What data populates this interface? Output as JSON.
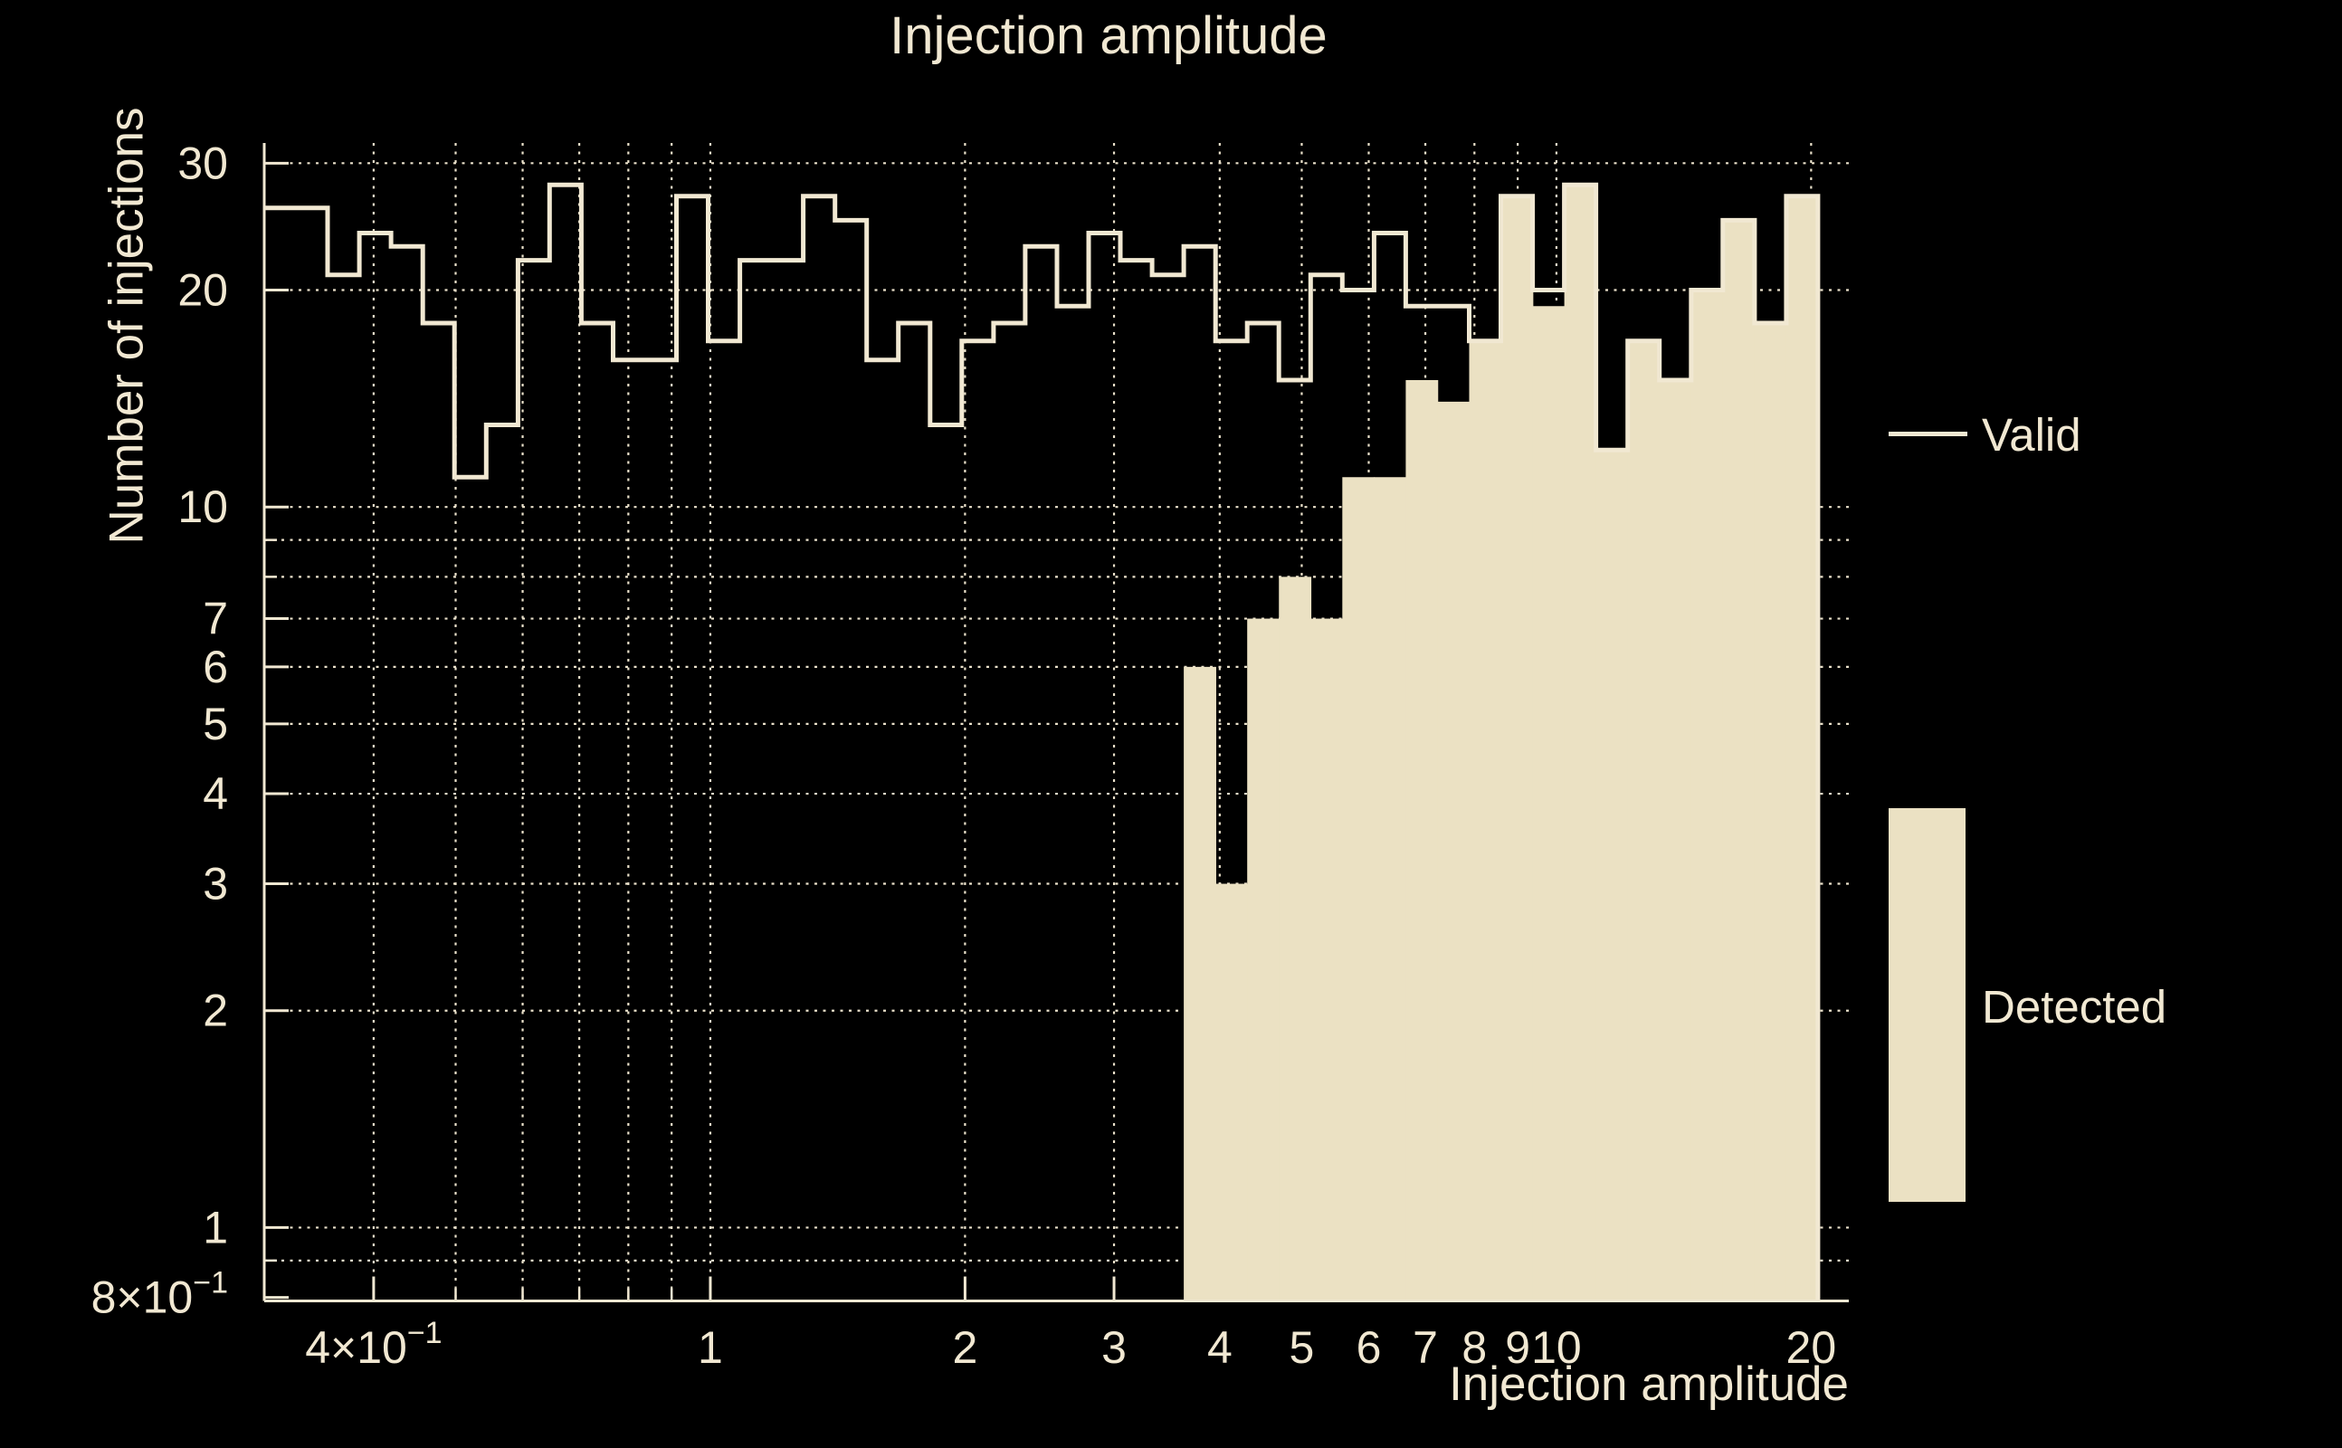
{
  "title": "Injection amplitude",
  "legend": {
    "valid_label": "Valid",
    "detected_label": "Detected"
  },
  "colors": {
    "background": "#000000",
    "text": "#f1e8d2",
    "valid_line": "#f1e8d2",
    "detected_fill": "#ebe1c3",
    "grid": "#e9e0ca",
    "spine": "#f1e8d2"
  },
  "chart_data": {
    "type": "step-histogram",
    "title": "Injection amplitude",
    "xlabel": "Injection amplitude",
    "ylabel": "Number of injections",
    "xscale": "log",
    "yscale": "log",
    "xlim": [
      0.297,
      22.16
    ],
    "ylim": [
      0.791,
      32.0
    ],
    "grid": true,
    "grid_style": "dotted",
    "legend_position": "right",
    "bin_edges": [
      0.2969,
      0.3237,
      0.3529,
      0.3847,
      0.4194,
      0.4572,
      0.4984,
      0.5434,
      0.5924,
      0.6457,
      0.7039,
      0.7674,
      0.8366,
      0.912,
      0.994,
      1.0836,
      1.1813,
      1.2877,
      1.4038,
      1.5303,
      1.6682,
      1.8186,
      1.9825,
      2.1612,
      2.356,
      2.5683,
      2.7998,
      3.0521,
      3.3272,
      3.6271,
      3.954,
      4.3104,
      4.6989,
      5.1224,
      5.5841,
      6.0874,
      6.6361,
      7.2342,
      7.8863,
      8.5971,
      9.372,
      10.2166,
      11.1374,
      12.1413,
      13.2356,
      14.4285,
      15.7289,
      17.1466,
      18.692,
      20.3766
    ],
    "series": [
      {
        "name": "Valid",
        "style": "step-line",
        "values": [
          26,
          26,
          21,
          24,
          23,
          18,
          11,
          13,
          22,
          28,
          18,
          16,
          16,
          27,
          17,
          22,
          22,
          27,
          25,
          16,
          18,
          13,
          17,
          18,
          23,
          19,
          24,
          22,
          21,
          23,
          17,
          18,
          15,
          21,
          20,
          24,
          19,
          19,
          17,
          27,
          20,
          28,
          12,
          17,
          15,
          20,
          25,
          18,
          27
        ]
      },
      {
        "name": "Detected",
        "style": "filled-bar",
        "values": [
          0,
          0,
          0,
          0,
          0,
          0,
          0,
          0,
          0,
          0,
          0,
          0,
          0,
          0,
          0,
          0,
          0,
          0,
          0,
          0,
          0,
          0,
          0,
          0,
          0,
          0,
          0,
          0,
          0,
          6,
          3,
          7,
          8,
          7,
          11,
          11,
          15,
          14,
          17,
          27,
          19,
          28,
          12,
          17,
          15,
          20,
          25,
          18,
          27
        ]
      }
    ],
    "x_major_ticks": [
      {
        "v": 0.4,
        "t": "4×10",
        "sup": "−1"
      },
      {
        "v": 1,
        "t": "1"
      },
      {
        "v": 2,
        "t": "2"
      },
      {
        "v": 3,
        "t": "3"
      },
      {
        "v": 4,
        "t": "4"
      },
      {
        "v": 5,
        "t": "5"
      },
      {
        "v": 6,
        "t": "6"
      },
      {
        "v": 7,
        "t": "7"
      },
      {
        "v": 8,
        "t": "8"
      },
      {
        "v": 9,
        "t": "9"
      },
      {
        "v": 10,
        "t": "10"
      },
      {
        "v": 20,
        "t": "20"
      }
    ],
    "x_minor_ticks": [
      0.5,
      0.6,
      0.7,
      0.8,
      0.9
    ],
    "y_major_ticks": [
      {
        "v": 0.8,
        "t": "8×10",
        "sup": "−1"
      },
      {
        "v": 1,
        "t": "1"
      },
      {
        "v": 2,
        "t": "2"
      },
      {
        "v": 3,
        "t": "3"
      },
      {
        "v": 4,
        "t": "4"
      },
      {
        "v": 5,
        "t": "5"
      },
      {
        "v": 6,
        "t": "6"
      },
      {
        "v": 7,
        "t": "7"
      },
      {
        "v": 10,
        "t": "10"
      },
      {
        "v": 20,
        "t": "20"
      },
      {
        "v": 30,
        "t": "30"
      }
    ],
    "y_minor_ticks": [
      0.9,
      8,
      9
    ],
    "x_gridlines": [
      0.4,
      0.5,
      0.6,
      0.7,
      0.8,
      0.9,
      1,
      2,
      3,
      4,
      5,
      6,
      7,
      8,
      9,
      10,
      20
    ],
    "y_gridlines": [
      0.9,
      1,
      2,
      3,
      4,
      5,
      6,
      7,
      8,
      9,
      10,
      20,
      30
    ]
  }
}
